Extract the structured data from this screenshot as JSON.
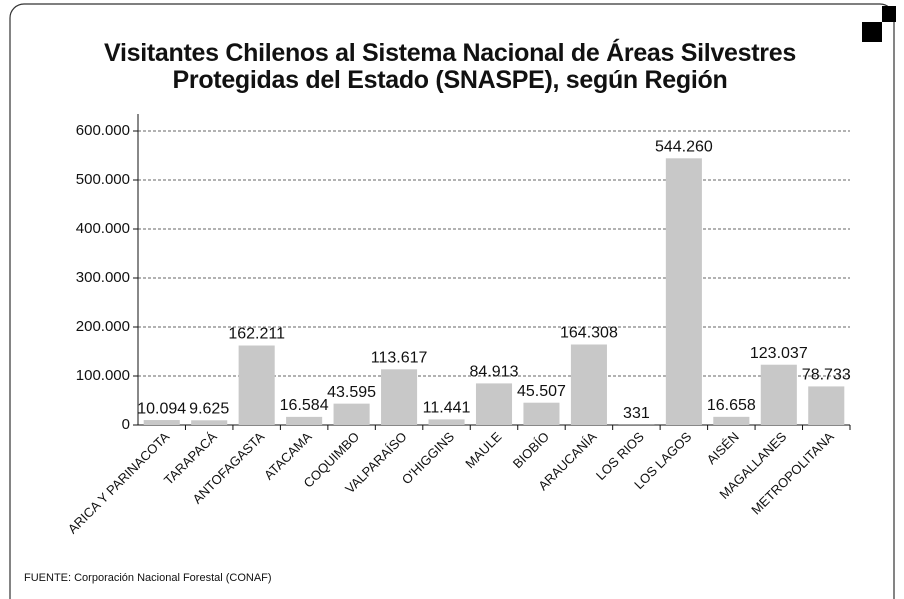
{
  "chart_data": {
    "type": "bar",
    "title": "Visitantes Chilenos al Sistema Nacional de Áreas Silvestres Protegidas del Estado (SNASPE), según Región",
    "categories": [
      "ARICA Y PARINACOTA",
      "TARAPACÁ",
      "ANTOFAGASTA",
      "ATACAMA",
      "COQUIMBO",
      "VALPARAÍSO",
      "O'HIGGINS",
      "MAULE",
      "BIOBÍO",
      "ARAUCANÍA",
      "LOS RIOS",
      "LOS LAGOS",
      "AISÉN",
      "MAGALLANES",
      "METROPOLITANA"
    ],
    "values": [
      10094,
      9625,
      162211,
      16584,
      43595,
      113617,
      11441,
      84913,
      45507,
      164308,
      331,
      544260,
      16658,
      123037,
      78733
    ],
    "value_labels": [
      "10.094",
      "9.625",
      "162.211",
      "16.584",
      "43.595",
      "113.617",
      "11.441",
      "84.913",
      "45.507",
      "164.308",
      "331",
      "544.260",
      "16.658",
      "123.037",
      "78.733"
    ],
    "color": "#c8c8c8",
    "ylim": [
      0,
      600000
    ],
    "yticks": [
      0,
      {
        "value": 100000,
        "label": "100.000"
      },
      {
        "value": 200000,
        "label": "200.000"
      },
      {
        "value": 300000,
        "label": "300.000"
      },
      {
        "value": 400000,
        "label": "400.000"
      },
      {
        "value": 500000,
        "label": "500.000"
      },
      {
        "value": 600000,
        "label": "600.000"
      }
    ],
    "grid": true,
    "source": "FUENTE: Corporación Nacional Forestal (CONAF)"
  }
}
